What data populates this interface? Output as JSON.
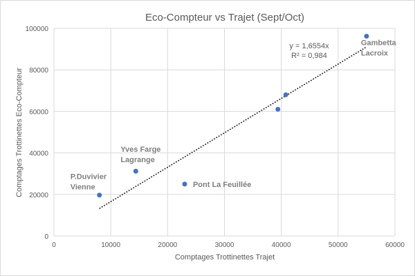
{
  "chart_data": {
    "type": "scatter",
    "title": "Eco-Compteur vs Trajet (Sept/Oct)",
    "xlabel": "Comptages Trottinettes Trajet",
    "ylabel": "Comptages Trottinettes  Eco-Compteur",
    "xlim": [
      0,
      60000
    ],
    "ylim": [
      0,
      100000
    ],
    "xticks": [
      0,
      10000,
      20000,
      30000,
      40000,
      50000,
      60000
    ],
    "yticks": [
      0,
      20000,
      40000,
      60000,
      80000,
      100000
    ],
    "grid": true,
    "marker_color": "#4472c4",
    "points": [
      {
        "x": 8000,
        "y": 19700,
        "label": [
          "P.Duvivier",
          "Vienne"
        ]
      },
      {
        "x": 14400,
        "y": 31200,
        "label": [
          "Yves Farge",
          "Lagrange"
        ]
      },
      {
        "x": 23000,
        "y": 25000,
        "label": [
          "Pont La Feuillée"
        ]
      },
      {
        "x": 39400,
        "y": 61000,
        "label": []
      },
      {
        "x": 40800,
        "y": 68000,
        "label": []
      },
      {
        "x": 55000,
        "y": 96200,
        "label": [
          "Gambetta",
          "Lacroix"
        ]
      }
    ],
    "trendline": {
      "type": "linear-through-origin",
      "slope": 1.6554,
      "x_range": [
        8000,
        55000
      ],
      "equation": "y = 1,6554x",
      "r_squared": "R² = 0,984"
    }
  }
}
